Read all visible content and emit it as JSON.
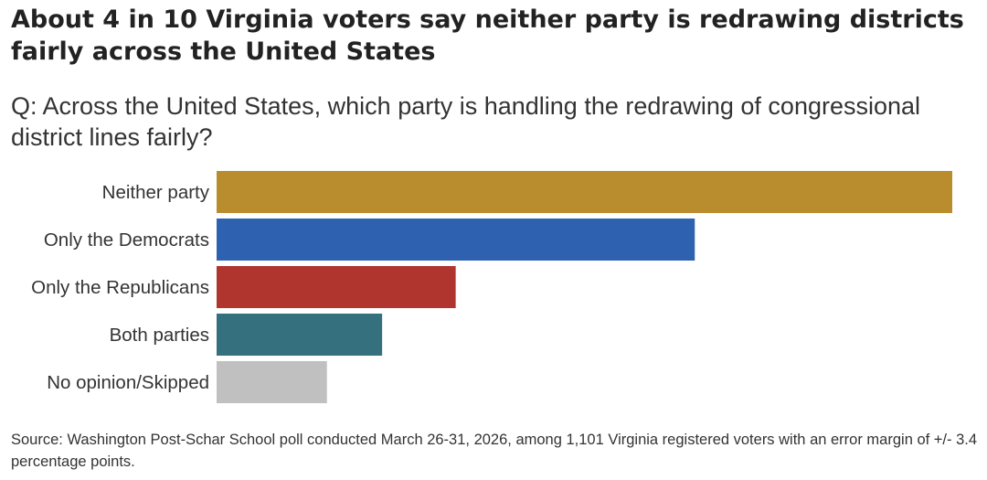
{
  "chart_data": {
    "type": "bar",
    "orientation": "horizontal",
    "title": "About 4 in 10 Virginia voters say neither party is redrawing districts fairly across the United States",
    "subtitle": "Q: Across the United States, which party is handling the redrawing of congressional district lines fairly?",
    "categories": [
      "Neither party",
      "Only the Democrats",
      "Only the Republicans",
      "Both parties",
      "No opinion/Skipped"
    ],
    "values": [
      40,
      26,
      13,
      9,
      6
    ],
    "colors": [
      "#b98d2d",
      "#2e62b0",
      "#b0352f",
      "#35707e",
      "#c0c0c0"
    ],
    "xlim": [
      0,
      40
    ],
    "grid": false,
    "legend": "none",
    "source": "Source: Washington Post-Schar School poll conducted March 26-31, 2026, among 1,101 Virginia registered voters with an error margin of +/- 3.4 percentage points."
  }
}
